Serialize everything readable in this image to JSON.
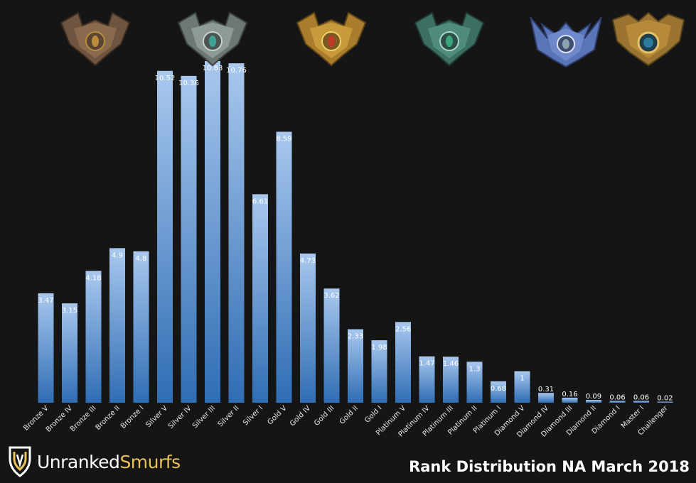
{
  "chart_data": {
    "type": "bar",
    "title": "Rank Distribution NA March 2018",
    "categories": [
      "Bronze V",
      "Bronze IV",
      "Bronze III",
      "Bronze II",
      "Bronze I",
      "Silver V",
      "Silver IV",
      "Silver III",
      "Silver II",
      "Silver I",
      "Gold V",
      "Gold IV",
      "Gold III",
      "Gold II",
      "Gold I",
      "Platinum V",
      "Platinum IV",
      "Platinum III",
      "Platinum II",
      "Platinum I",
      "Diamond V",
      "Diamond IV",
      "Diamond III",
      "Diamond II",
      "Diamond I",
      "Master I",
      "Challenger"
    ],
    "values": [
      3.47,
      3.15,
      4.18,
      4.9,
      4.8,
      10.52,
      10.36,
      10.83,
      10.76,
      6.61,
      8.59,
      4.73,
      3.62,
      2.33,
      1.98,
      2.56,
      1.47,
      1.46,
      1.3,
      0.68,
      1,
      0.31,
      0.16,
      0.09,
      0.06,
      0.06,
      0.02
    ],
    "value_labels": [
      "3.47",
      "3.15",
      "4.18",
      "4.9",
      "4.8",
      "10.52",
      "10.36",
      "10.83",
      "10.76",
      "6.61",
      "8.59",
      "4.73",
      "3.62",
      "2.33",
      "1.98",
      "2.56",
      "1.47",
      "1.46",
      "1.3",
      "0.68",
      "1",
      "0.31",
      "0.16",
      "0.09",
      "0.06",
      "0.06",
      "0.02"
    ],
    "xlabel": "",
    "ylabel": "",
    "ylim": [
      0,
      10.83
    ],
    "grid": false,
    "bar_color_top": "#a9c8ee",
    "bar_color_bottom": "#2f6db4"
  },
  "brand": {
    "part1": "Unranked",
    "part2": "Smurfs"
  },
  "colors": {
    "background": "#151515",
    "brand_gold": "#e9c15a"
  },
  "emblems": [
    {
      "name": "bronze-emblem-icon",
      "main": "#8a6a4c",
      "gem": "#b88c3a"
    },
    {
      "name": "silver-emblem-icon",
      "main": "#8e9a96",
      "gem": "#3fa394"
    },
    {
      "name": "gold-emblem-icon",
      "main": "#c79a3c",
      "gem": "#c0392b"
    },
    {
      "name": "platinum-emblem-icon",
      "main": "#4f8c7c",
      "gem": "#3aa57a"
    },
    {
      "name": "diamond-emblem-icon",
      "main": "#6f88c9",
      "gem": "#8da4b0"
    },
    {
      "name": "master-emblem-icon",
      "main": "#b78a3a",
      "gem": "#2e7c9c"
    }
  ]
}
